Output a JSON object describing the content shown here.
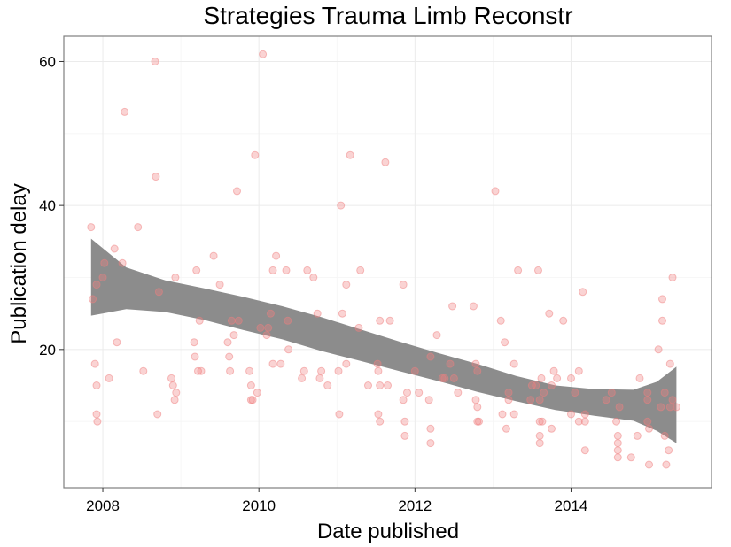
{
  "chart_data": {
    "type": "scatter",
    "title": "Strategies Trauma Limb Reconstr",
    "xlabel": "Date published",
    "ylabel": "Publication delay",
    "xlim": [
      2007.5,
      2015.8
    ],
    "ylim": [
      0.8,
      63.5
    ],
    "x_ticks": [
      2008,
      2010,
      2012,
      2014
    ],
    "y_ticks": [
      20,
      40,
      60
    ],
    "grid": true,
    "point_color": "#f08080",
    "ribbon_color": "#8c8c8c",
    "points": [
      [
        2007.85,
        37
      ],
      [
        2007.87,
        27
      ],
      [
        2007.92,
        29
      ],
      [
        2007.9,
        18
      ],
      [
        2007.92,
        15
      ],
      [
        2007.92,
        11
      ],
      [
        2007.93,
        10
      ],
      [
        2008.0,
        30
      ],
      [
        2008.02,
        32
      ],
      [
        2008.08,
        16
      ],
      [
        2008.15,
        34
      ],
      [
        2008.18,
        21
      ],
      [
        2008.25,
        32
      ],
      [
        2008.28,
        53
      ],
      [
        2008.45,
        37
      ],
      [
        2008.52,
        17
      ],
      [
        2008.67,
        60
      ],
      [
        2008.68,
        44
      ],
      [
        2008.7,
        11
      ],
      [
        2008.72,
        28
      ],
      [
        2008.88,
        16
      ],
      [
        2008.9,
        15
      ],
      [
        2008.93,
        30
      ],
      [
        2008.92,
        13
      ],
      [
        2008.94,
        14
      ],
      [
        2009.17,
        21
      ],
      [
        2009.18,
        19
      ],
      [
        2009.2,
        31
      ],
      [
        2009.22,
        17
      ],
      [
        2009.24,
        24
      ],
      [
        2009.26,
        17
      ],
      [
        2009.42,
        33
      ],
      [
        2009.5,
        29
      ],
      [
        2009.6,
        21
      ],
      [
        2009.62,
        19
      ],
      [
        2009.65,
        24
      ],
      [
        2009.63,
        17
      ],
      [
        2009.68,
        22
      ],
      [
        2009.72,
        42
      ],
      [
        2009.74,
        24
      ],
      [
        2009.88,
        17
      ],
      [
        2009.9,
        13
      ],
      [
        2009.9,
        15
      ],
      [
        2009.92,
        13
      ],
      [
        2009.95,
        47
      ],
      [
        2009.98,
        14
      ],
      [
        2010.05,
        61
      ],
      [
        2010.02,
        23
      ],
      [
        2010.1,
        22
      ],
      [
        2010.12,
        23
      ],
      [
        2010.15,
        25
      ],
      [
        2010.18,
        31
      ],
      [
        2010.18,
        18
      ],
      [
        2010.22,
        33
      ],
      [
        2010.28,
        18
      ],
      [
        2010.35,
        31
      ],
      [
        2010.37,
        24
      ],
      [
        2010.38,
        20
      ],
      [
        2010.55,
        16
      ],
      [
        2010.58,
        17
      ],
      [
        2010.62,
        31
      ],
      [
        2010.7,
        30
      ],
      [
        2010.75,
        25
      ],
      [
        2010.78,
        16
      ],
      [
        2010.8,
        17
      ],
      [
        2010.88,
        15
      ],
      [
        2011.05,
        40
      ],
      [
        2011.07,
        25
      ],
      [
        2011.02,
        17
      ],
      [
        2011.03,
        11
      ],
      [
        2011.12,
        29
      ],
      [
        2011.12,
        18
      ],
      [
        2011.17,
        47
      ],
      [
        2011.28,
        23
      ],
      [
        2011.3,
        31
      ],
      [
        2011.4,
        15
      ],
      [
        2011.52,
        18
      ],
      [
        2011.53,
        17
      ],
      [
        2011.55,
        24
      ],
      [
        2011.55,
        15
      ],
      [
        2011.53,
        11
      ],
      [
        2011.55,
        10
      ],
      [
        2011.62,
        46
      ],
      [
        2011.65,
        15
      ],
      [
        2011.68,
        24
      ],
      [
        2011.85,
        29
      ],
      [
        2011.85,
        13
      ],
      [
        2011.87,
        8
      ],
      [
        2011.87,
        10
      ],
      [
        2011.9,
        14
      ],
      [
        2012.0,
        17
      ],
      [
        2012.05,
        14
      ],
      [
        2012.18,
        13
      ],
      [
        2012.2,
        19
      ],
      [
        2012.2,
        9
      ],
      [
        2012.2,
        7
      ],
      [
        2012.28,
        22
      ],
      [
        2012.35,
        16
      ],
      [
        2012.38,
        16
      ],
      [
        2012.45,
        18
      ],
      [
        2012.48,
        26
      ],
      [
        2012.5,
        16
      ],
      [
        2012.55,
        14
      ],
      [
        2012.75,
        26
      ],
      [
        2012.78,
        18
      ],
      [
        2012.78,
        13
      ],
      [
        2012.8,
        17
      ],
      [
        2012.8,
        12
      ],
      [
        2012.8,
        10
      ],
      [
        2012.82,
        10
      ],
      [
        2013.03,
        42
      ],
      [
        2013.1,
        24
      ],
      [
        2013.12,
        11
      ],
      [
        2013.15,
        21
      ],
      [
        2013.17,
        9
      ],
      [
        2013.2,
        13
      ],
      [
        2013.2,
        14
      ],
      [
        2013.27,
        18
      ],
      [
        2013.27,
        11
      ],
      [
        2013.32,
        31
      ],
      [
        2013.48,
        13
      ],
      [
        2013.5,
        15
      ],
      [
        2013.55,
        15
      ],
      [
        2013.58,
        31
      ],
      [
        2013.6,
        13
      ],
      [
        2013.6,
        10
      ],
      [
        2013.62,
        16
      ],
      [
        2013.6,
        8
      ],
      [
        2013.6,
        7
      ],
      [
        2013.63,
        10
      ],
      [
        2013.65,
        14
      ],
      [
        2013.72,
        25
      ],
      [
        2013.75,
        15
      ],
      [
        2013.75,
        9
      ],
      [
        2013.78,
        17
      ],
      [
        2013.82,
        16
      ],
      [
        2013.9,
        24
      ],
      [
        2014.0,
        16
      ],
      [
        2014.0,
        11
      ],
      [
        2014.05,
        14
      ],
      [
        2014.1,
        17
      ],
      [
        2014.1,
        10
      ],
      [
        2014.15,
        28
      ],
      [
        2014.18,
        11
      ],
      [
        2014.18,
        10
      ],
      [
        2014.18,
        6
      ],
      [
        2014.45,
        13
      ],
      [
        2014.52,
        14
      ],
      [
        2014.58,
        10
      ],
      [
        2014.6,
        8
      ],
      [
        2014.6,
        7
      ],
      [
        2014.6,
        6
      ],
      [
        2014.6,
        5
      ],
      [
        2014.62,
        12
      ],
      [
        2014.77,
        5
      ],
      [
        2014.85,
        8
      ],
      [
        2014.88,
        16
      ],
      [
        2014.98,
        14
      ],
      [
        2014.98,
        13
      ],
      [
        2014.98,
        10
      ],
      [
        2015.0,
        9
      ],
      [
        2015.0,
        4
      ],
      [
        2015.12,
        20
      ],
      [
        2015.15,
        12
      ],
      [
        2015.17,
        27
      ],
      [
        2015.17,
        24
      ],
      [
        2015.2,
        14
      ],
      [
        2015.2,
        8
      ],
      [
        2015.22,
        4
      ],
      [
        2015.25,
        6
      ],
      [
        2015.27,
        18
      ],
      [
        2015.27,
        12
      ],
      [
        2015.3,
        30
      ],
      [
        2015.3,
        13
      ],
      [
        2015.35,
        12
      ]
    ],
    "ribbon": {
      "x": [
        2007.85,
        2008.3,
        2008.8,
        2009.3,
        2009.8,
        2010.3,
        2010.8,
        2011.3,
        2011.8,
        2012.3,
        2012.8,
        2013.3,
        2013.8,
        2014.3,
        2014.8,
        2015.1,
        2015.35
      ],
      "lower": [
        24.7,
        25.6,
        25.2,
        24.1,
        22.7,
        21.4,
        19.8,
        18.4,
        17.0,
        15.6,
        14.1,
        12.8,
        11.6,
        10.8,
        10.1,
        8.7,
        7.0
      ],
      "upper": [
        35.4,
        31.4,
        29.6,
        28.5,
        27.3,
        26.0,
        24.5,
        22.8,
        21.1,
        19.5,
        18.0,
        16.3,
        15.0,
        14.5,
        14.4,
        15.5,
        17.6
      ]
    }
  }
}
